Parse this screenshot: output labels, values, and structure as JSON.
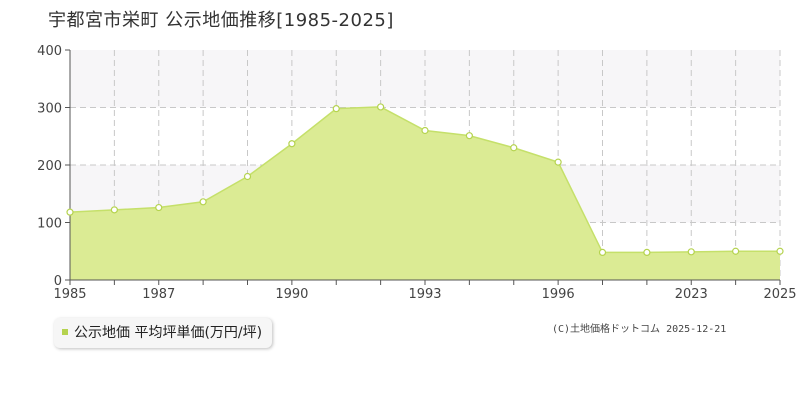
{
  "colors": {
    "fill": "#dbeb94",
    "line": "#c5e06a",
    "marker_fill": "#ffffff",
    "marker_stroke": "#b5d34f",
    "band": "#f7f6f8",
    "grid": "#c8c8c8",
    "axis": "#555555",
    "legend_swatch": "#b5d34f"
  },
  "chart_data": {
    "type": "area",
    "title": "宇都宮市栄町 公示地価推移[1985-2025]",
    "x": [
      "1985",
      "1986",
      "1987",
      "1988",
      "1989",
      "1990",
      "1991",
      "1992",
      "1993",
      "1994",
      "1995",
      "1996",
      "1997",
      "2021",
      "2023",
      "2024",
      "2025"
    ],
    "x_tick_labels": [
      "1985",
      "",
      "1987",
      "",
      "",
      "1990",
      "",
      "",
      "1993",
      "",
      "",
      "1996",
      "",
      "",
      "2023",
      "",
      "2025"
    ],
    "series": [
      {
        "name": "公示地価 平均坪単価(万円/坪)",
        "values": [
          118,
          122,
          126,
          136,
          180,
          237,
          298,
          301,
          260,
          251,
          230,
          205,
          48,
          48,
          49,
          50,
          50
        ]
      }
    ],
    "ylim": [
      0,
      400
    ],
    "y_ticks": [
      0,
      100,
      200,
      300,
      400
    ],
    "grid": true,
    "shaded_bands": [
      [
        100,
        200
      ],
      [
        300,
        400
      ]
    ],
    "legend": "bottom-left"
  },
  "copyright": "(C)土地価格ドットコム 2025-12-21"
}
